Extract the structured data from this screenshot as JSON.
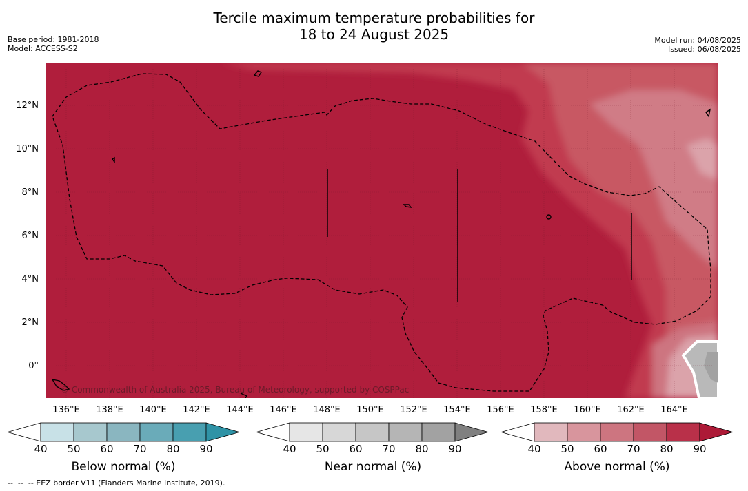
{
  "title_line1": "Tercile maximum temperature probabilities for",
  "title_line2": "18 to 24 August 2025",
  "meta": {
    "base_period": "Base period: 1981-2018",
    "model": "Model: ACCESS-S2",
    "model_run": "Model run: 04/08/2025",
    "issued": "Issued: 06/08/2025"
  },
  "map": {
    "copyright": "© Commonwealth of Australia 2025, Bureau of Meteorology, supported by COSPPac",
    "lat_labels": [
      "12°N",
      "10°N",
      "8°N",
      "6°N",
      "4°N",
      "2°N",
      "0°"
    ],
    "lon_labels": [
      "136°E",
      "138°E",
      "140°E",
      "142°E",
      "144°E",
      "146°E",
      "148°E",
      "150°E",
      "152°E",
      "154°E",
      "156°E",
      "158°E",
      "160°E",
      "162°E",
      "164°E"
    ],
    "colors": {
      "dominant_above_90": "#b01e3c",
      "above_80": "#c13a4f",
      "above_70": "#c85864",
      "above_60": "#d07c86",
      "above_50": "#dba3aa",
      "near_normal_grey": "#a7a7a7",
      "eez_border": "#000000"
    }
  },
  "colorbars": [
    {
      "title": "Below normal (%)",
      "ticks": [
        "40",
        "50",
        "60",
        "70",
        "80",
        "90"
      ],
      "colors": [
        "#ffffff",
        "#c8e1e7",
        "#a7c8ce",
        "#8ab6c0",
        "#6aabb9",
        "#489fb0",
        "#2f93a6"
      ]
    },
    {
      "title": "Near normal (%)",
      "ticks": [
        "40",
        "50",
        "60",
        "70",
        "80",
        "90"
      ],
      "colors": [
        "#ffffff",
        "#e6e6e6",
        "#d7d7d7",
        "#c6c6c6",
        "#b5b5b5",
        "#a2a2a2",
        "#808080"
      ]
    },
    {
      "title": "Above normal (%)",
      "ticks": [
        "40",
        "50",
        "60",
        "70",
        "80",
        "90"
      ],
      "colors": [
        "#ffffff",
        "#e1b8bd",
        "#d8959d",
        "#cd7580",
        "#c25666",
        "#b93049",
        "#ad1a37"
      ]
    }
  ],
  "footer": "--  --  -- EEZ border V11 (Flanders Marine Institute, 2019)."
}
